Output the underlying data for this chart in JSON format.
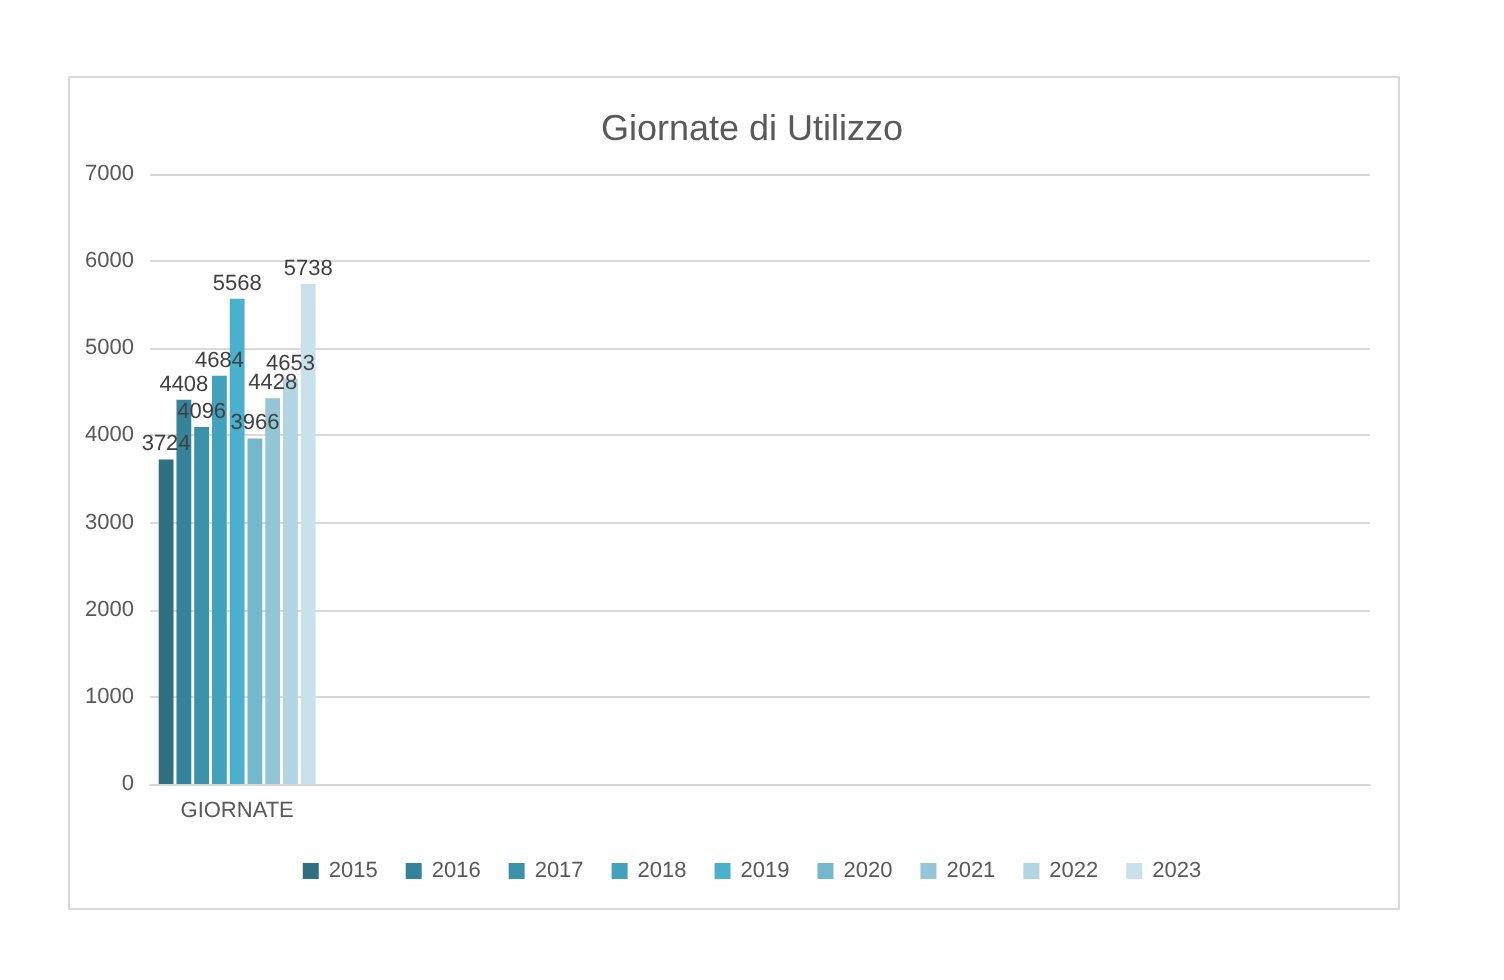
{
  "chart_data": {
    "type": "bar",
    "title": "Giornate di Utilizzo",
    "categories": [
      "GIORNATE",
      null,
      null,
      null,
      null,
      null,
      null
    ],
    "series": [
      {
        "name": "2015",
        "color": "#2f6f80",
        "values": [
          3724,
          null,
          null,
          null,
          null,
          null,
          null
        ]
      },
      {
        "name": "2016",
        "color": "#35839a",
        "values": [
          4408,
          null,
          null,
          null,
          null,
          null,
          null
        ]
      },
      {
        "name": "2017",
        "color": "#3a92a8",
        "values": [
          4096,
          null,
          null,
          null,
          null,
          null,
          null
        ]
      },
      {
        "name": "2018",
        "color": "#43a2bb",
        "values": [
          4684,
          null,
          null,
          null,
          null,
          null,
          null
        ]
      },
      {
        "name": "2019",
        "color": "#4ab0cc",
        "values": [
          5568,
          null,
          null,
          null,
          null,
          null,
          null
        ]
      },
      {
        "name": "2020",
        "color": "#74b8cd",
        "values": [
          3966,
          null,
          null,
          null,
          null,
          null,
          null
        ]
      },
      {
        "name": "2021",
        "color": "#95c6d6",
        "values": [
          4428,
          null,
          null,
          null,
          null,
          null,
          null
        ]
      },
      {
        "name": "2022",
        "color": "#b1d5e1",
        "values": [
          4653,
          null,
          null,
          null,
          null,
          null,
          null
        ]
      },
      {
        "name": "2023",
        "color": "#c8e1ea",
        "values": [
          5738,
          null,
          null,
          null,
          null,
          null,
          null
        ]
      }
    ],
    "ylim": [
      0,
      7000
    ],
    "yticks": [
      0,
      1000,
      2000,
      3000,
      4000,
      5000,
      6000,
      7000
    ],
    "grid": "y",
    "legend": "bottom",
    "data_labels": true
  }
}
